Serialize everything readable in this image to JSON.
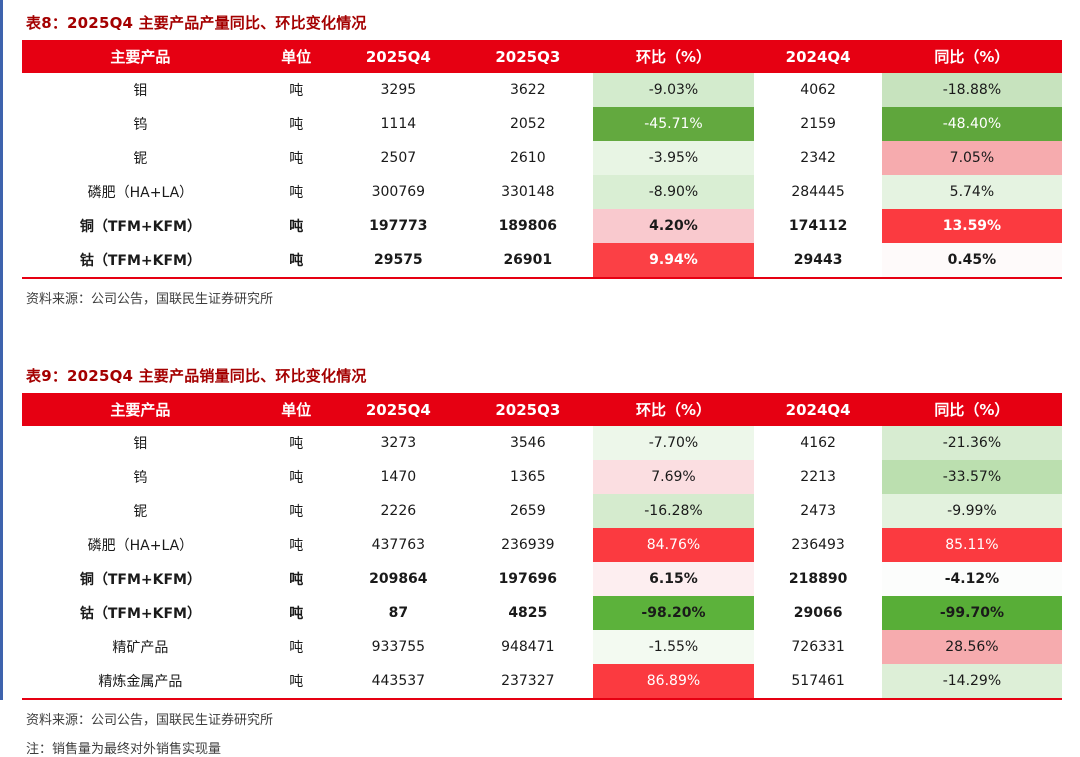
{
  "page": {
    "background": "#FFFFFF",
    "accent_red": "#E60012",
    "title_color": "#A40000",
    "left_rule_color": "#3E63AD"
  },
  "tables": [
    {
      "title": "表8：2025Q4 主要产品产量同比、环比变化情况",
      "columns": [
        "主要产品",
        "单位",
        "2025Q4",
        "2025Q3",
        "环比（%）",
        "2024Q4",
        "同比（%）"
      ],
      "rows": [
        {
          "product": "钼",
          "unit": "吨",
          "v2025q4": "3295",
          "v2025q3": "3622",
          "qoq": "-9.03%",
          "v2024q4": "4062",
          "yoy": "-18.88%",
          "bold": false,
          "qoq_bg": "#D3EBCD",
          "qoq_color": "#1A1A1A",
          "yoy_bg": "#C7E3BE",
          "yoy_color": "#1A1A1A"
        },
        {
          "product": "钨",
          "unit": "吨",
          "v2025q4": "1114",
          "v2025q3": "2052",
          "qoq": "-45.71%",
          "v2024q4": "2159",
          "yoy": "-48.40%",
          "bold": false,
          "qoq_bg": "#63A93F",
          "qoq_color": "#FFFFFF",
          "yoy_bg": "#5FA63C",
          "yoy_color": "#FFFFFF"
        },
        {
          "product": "铌",
          "unit": "吨",
          "v2025q4": "2507",
          "v2025q3": "2610",
          "qoq": "-3.95%",
          "v2024q4": "2342",
          "yoy": "7.05%",
          "bold": false,
          "qoq_bg": "#E8F5E4",
          "qoq_color": "#1A1A1A",
          "yoy_bg": "#F6ABAE",
          "yoy_color": "#1A1A1A"
        },
        {
          "product": "磷肥（HA+LA）",
          "unit": "吨",
          "v2025q4": "300769",
          "v2025q3": "330148",
          "qoq": "-8.90%",
          "v2024q4": "284445",
          "yoy": "5.74%",
          "bold": false,
          "qoq_bg": "#D9EED3",
          "qoq_color": "#1A1A1A",
          "yoy_bg": "#E5F3E1",
          "yoy_color": "#1A1A1A"
        },
        {
          "product": "铜（TFM+KFM）",
          "unit": "吨",
          "v2025q4": "197773",
          "v2025q3": "189806",
          "qoq": "4.20%",
          "v2024q4": "174112",
          "yoy": "13.59%",
          "bold": true,
          "qoq_bg": "#F9C9CE",
          "qoq_color": "#1A1A1A",
          "yoy_bg": "#FB3A40",
          "yoy_color": "#FFFFFF"
        },
        {
          "product": "钴（TFM+KFM）",
          "unit": "吨",
          "v2025q4": "29575",
          "v2025q3": "26901",
          "qoq": "9.94%",
          "v2024q4": "29443",
          "yoy": "0.45%",
          "bold": true,
          "qoq_bg": "#FB4045",
          "qoq_color": "#FFFFFF",
          "yoy_bg": "#FEFAFA",
          "yoy_color": "#1A1A1A"
        }
      ],
      "source": "资料来源：公司公告，国联民生证券研究所",
      "note": ""
    },
    {
      "title": "表9：2025Q4 主要产品销量同比、环比变化情况",
      "columns": [
        "主要产品",
        "单位",
        "2025Q4",
        "2025Q3",
        "环比（%）",
        "2024Q4",
        "同比（%）"
      ],
      "rows": [
        {
          "product": "钼",
          "unit": "吨",
          "v2025q4": "3273",
          "v2025q3": "3546",
          "qoq": "-7.70%",
          "v2024q4": "4162",
          "yoy": "-21.36%",
          "bold": false,
          "qoq_bg": "#EDF7EA",
          "qoq_color": "#1A1A1A",
          "yoy_bg": "#D7ECD1",
          "yoy_color": "#1A1A1A"
        },
        {
          "product": "钨",
          "unit": "吨",
          "v2025q4": "1470",
          "v2025q3": "1365",
          "qoq": "7.69%",
          "v2024q4": "2213",
          "yoy": "-33.57%",
          "bold": false,
          "qoq_bg": "#FBDEE1",
          "qoq_color": "#1A1A1A",
          "yoy_bg": "#BBDFAF",
          "yoy_color": "#1A1A1A"
        },
        {
          "product": "铌",
          "unit": "吨",
          "v2025q4": "2226",
          "v2025q3": "2659",
          "qoq": "-16.28%",
          "v2024q4": "2473",
          "yoy": "-9.99%",
          "bold": false,
          "qoq_bg": "#D5EBCE",
          "qoq_color": "#1A1A1A",
          "yoy_bg": "#E3F2DE",
          "yoy_color": "#1A1A1A"
        },
        {
          "product": "磷肥（HA+LA）",
          "unit": "吨",
          "v2025q4": "437763",
          "v2025q3": "236939",
          "qoq": "84.76%",
          "v2024q4": "236493",
          "yoy": "85.11%",
          "bold": false,
          "qoq_bg": "#FB3A40",
          "qoq_color": "#FFFFFF",
          "yoy_bg": "#FB3A40",
          "yoy_color": "#FFFFFF"
        },
        {
          "product": "铜（TFM+KFM）",
          "unit": "吨",
          "v2025q4": "209864",
          "v2025q3": "197696",
          "qoq": "6.15%",
          "v2024q4": "218890",
          "yoy": "-4.12%",
          "bold": true,
          "qoq_bg": "#FDEEF0",
          "qoq_color": "#1A1A1A",
          "yoy_bg": "#FCFDFC",
          "yoy_color": "#1A1A1A"
        },
        {
          "product": "钴（TFM+KFM）",
          "unit": "吨",
          "v2025q4": "87",
          "v2025q3": "4825",
          "qoq": "-98.20%",
          "v2024q4": "29066",
          "yoy": "-99.70%",
          "bold": true,
          "qoq_bg": "#5CB23B",
          "qoq_color": "#1A1A1A",
          "yoy_bg": "#58AE37",
          "yoy_color": "#1A1A1A"
        },
        {
          "product": "精矿产品",
          "unit": "吨",
          "v2025q4": "933755",
          "v2025q3": "948471",
          "qoq": "-1.55%",
          "v2024q4": "726331",
          "yoy": "28.56%",
          "bold": false,
          "qoq_bg": "#F3FAF1",
          "qoq_color": "#1A1A1A",
          "yoy_bg": "#F6ABAE",
          "yoy_color": "#1A1A1A"
        },
        {
          "product": "精炼金属产品",
          "unit": "吨",
          "v2025q4": "443537",
          "v2025q3": "237327",
          "qoq": "86.89%",
          "v2024q4": "517461",
          "yoy": "-14.29%",
          "bold": false,
          "qoq_bg": "#FB3A40",
          "qoq_color": "#FFFFFF",
          "yoy_bg": "#DDEFD7",
          "yoy_color": "#1A1A1A"
        }
      ],
      "source": "资料来源：公司公告，国联民生证券研究所",
      "note": "注：销售量为最终对外销售实现量"
    }
  ]
}
